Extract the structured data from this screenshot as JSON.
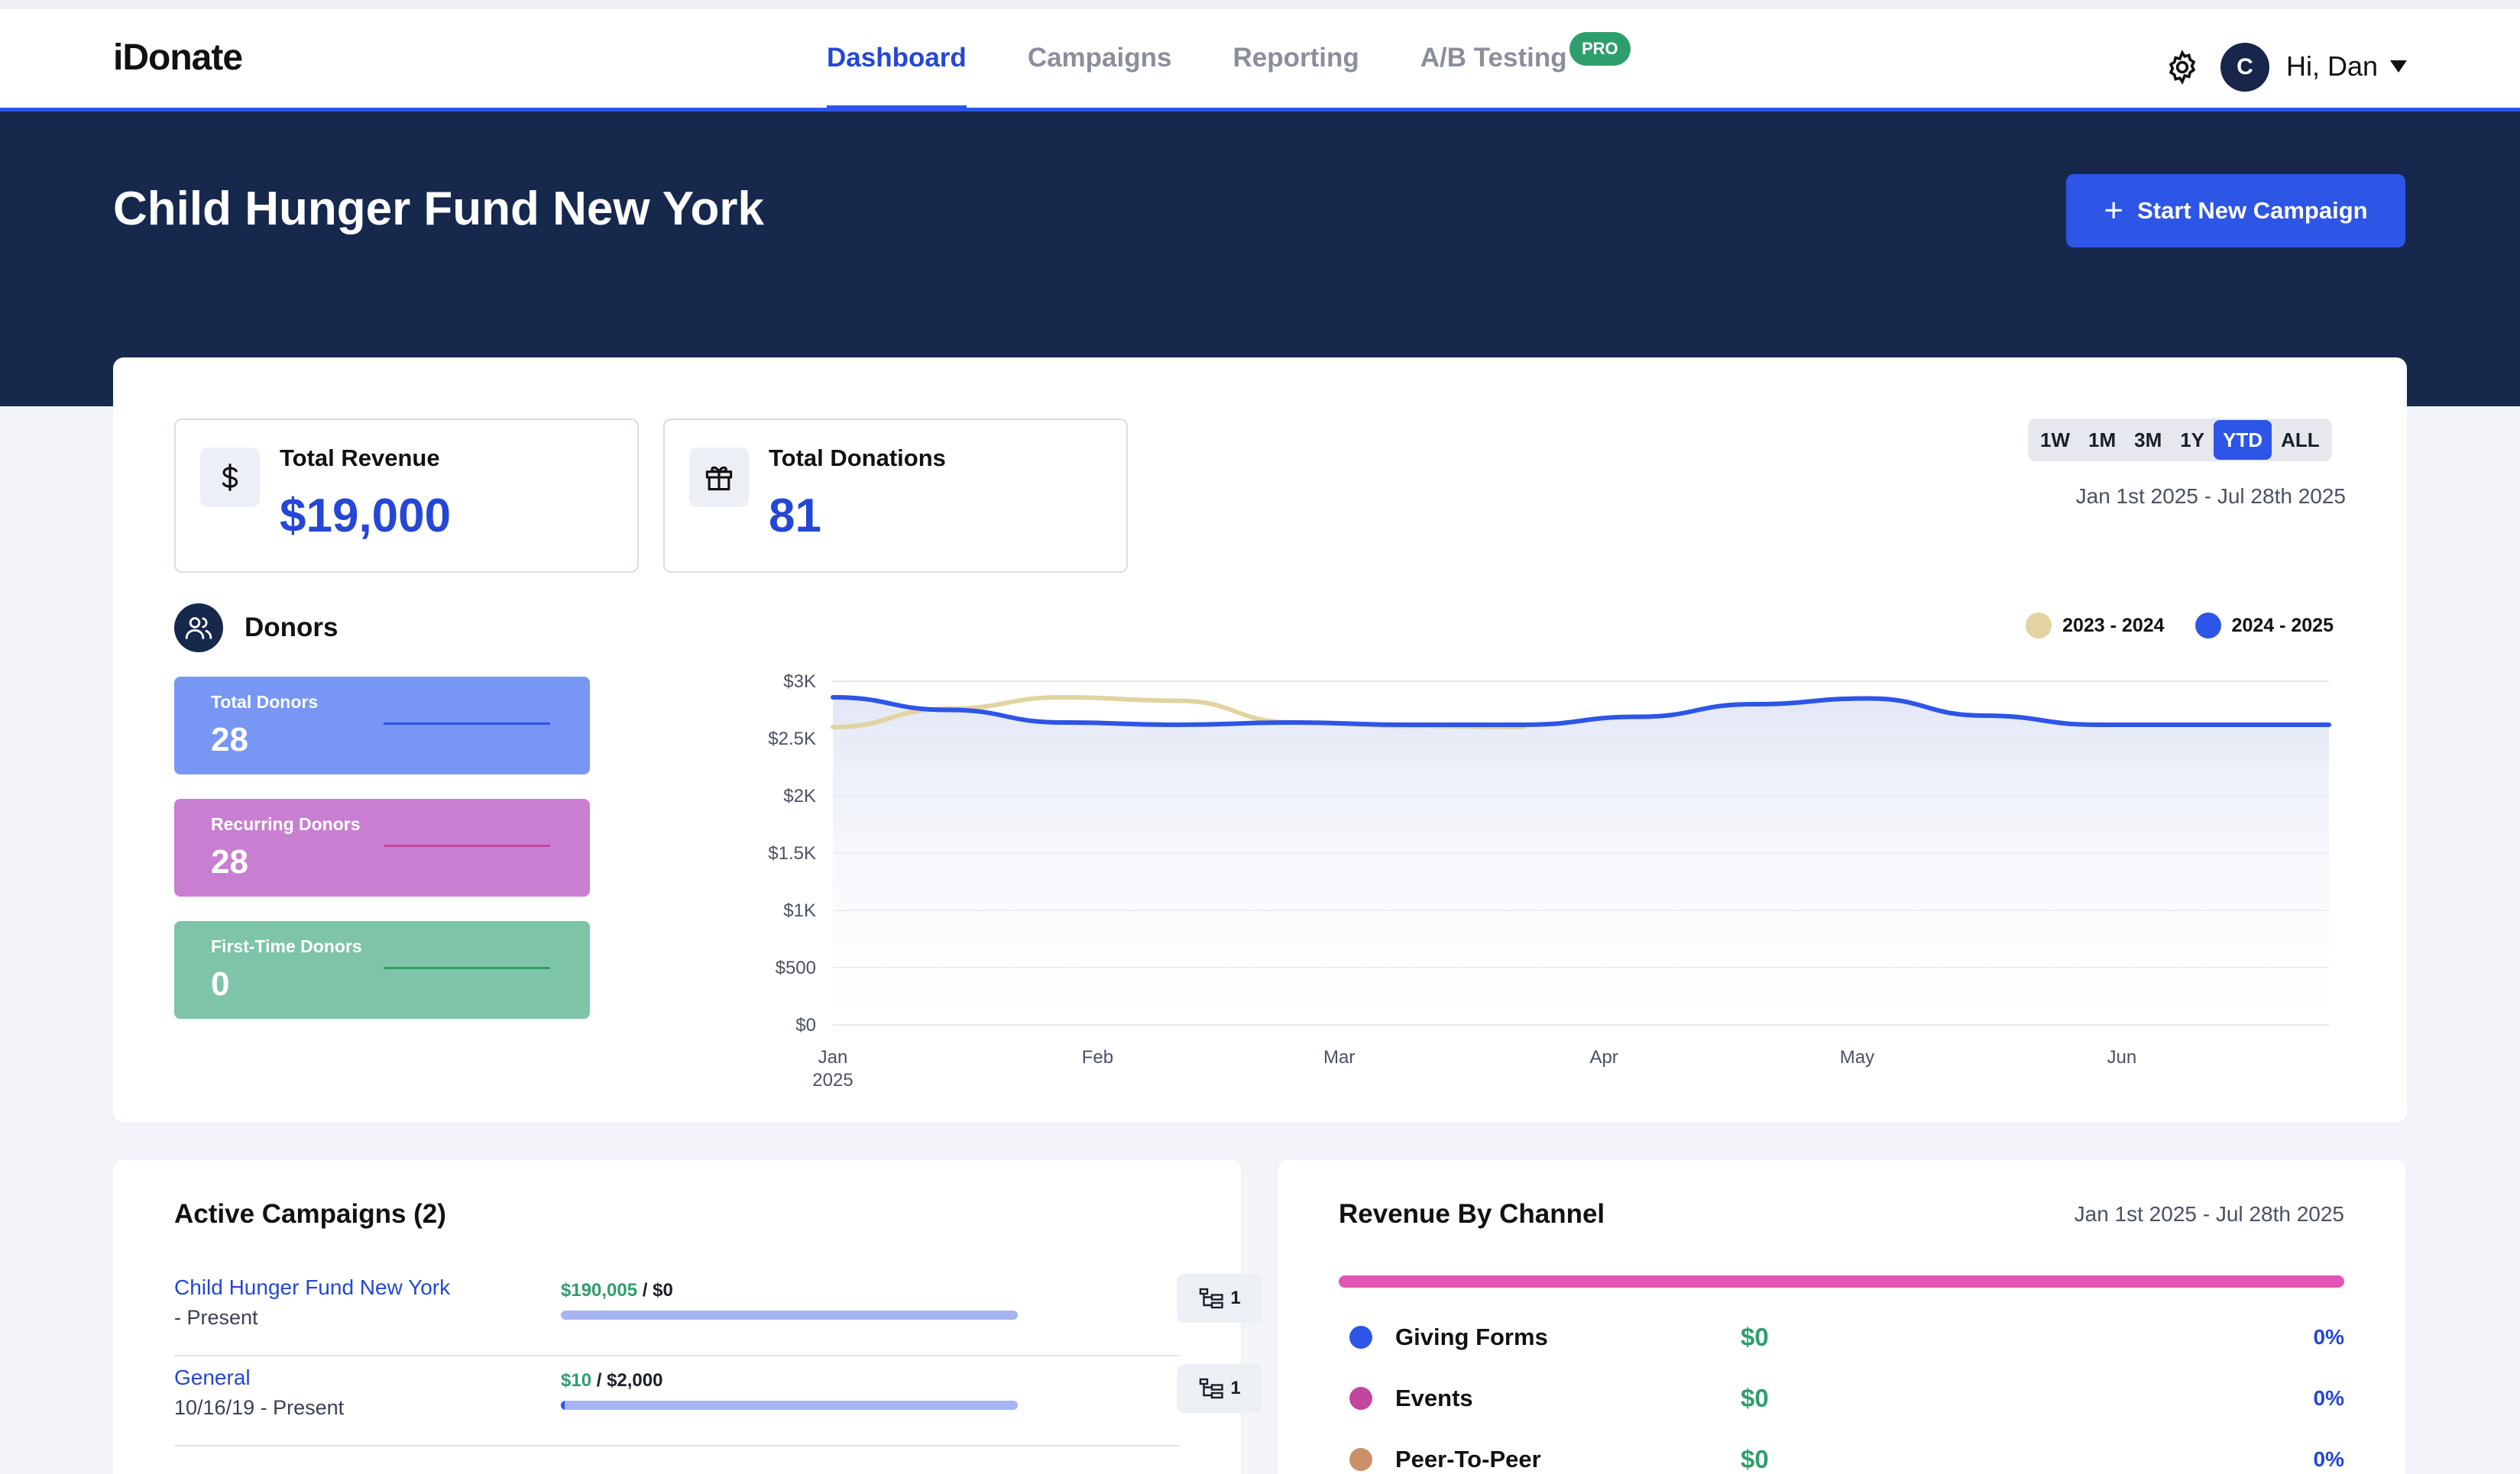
{
  "app": {
    "logo": "iDonate"
  },
  "nav": {
    "tabs": [
      {
        "label": "Dashboard",
        "active": true
      },
      {
        "label": "Campaigns",
        "active": false
      },
      {
        "label": "Reporting",
        "active": false
      },
      {
        "label": "A/B Testing",
        "active": false
      }
    ],
    "pro_badge": "PRO",
    "settings_icon": "gear-icon",
    "avatar_initial": "C",
    "greeting": "Hi, Dan"
  },
  "hero": {
    "title": "Child Hunger Fund New York",
    "start_button": "Start New Campaign"
  },
  "kpis": [
    {
      "label": "Total Revenue",
      "value": "$19,000",
      "icon": "dollar-icon"
    },
    {
      "label": "Total Donations",
      "value": "81",
      "icon": "gift-icon"
    }
  ],
  "range": {
    "options": [
      "1W",
      "1M",
      "3M",
      "1Y",
      "YTD",
      "ALL"
    ],
    "selected": "YTD",
    "date_range": "Jan 1st 2025 - Jul 28th 2025"
  },
  "donors": {
    "title": "Donors",
    "stats": [
      {
        "label": "Total Donors",
        "value": "28",
        "color": "#7896f4",
        "line": "#2d55e6"
      },
      {
        "label": "Recurring Donors",
        "value": "28",
        "color": "#c97fd1",
        "line": "#c2459f"
      },
      {
        "label": "First-Time Donors",
        "value": "0",
        "color": "#7dc4a8",
        "line": "#2f9e6d"
      }
    ]
  },
  "chart_data": {
    "type": "line",
    "title": "",
    "xlabel": "",
    "ylabel": "",
    "x_ticks": [
      "Jan\n2025",
      "Feb",
      "Mar",
      "Apr",
      "May",
      "Jun"
    ],
    "y_ticks": [
      "$0",
      "$500",
      "$1K",
      "$1.5K",
      "$2K",
      "$2.5K",
      "$3K"
    ],
    "ylim": [
      0,
      3000
    ],
    "x": [
      "Jan 1",
      "Jan 15",
      "Feb 1",
      "Feb 15",
      "Mar 1",
      "Mar 15",
      "Apr 1",
      "Apr 15",
      "May 1",
      "May 15",
      "Jun 1",
      "Jun 15",
      "Jul 1",
      "Jul 28"
    ],
    "series": [
      {
        "name": "2023 - 2024",
        "color": "#e2d3a0",
        "values": [
          2600,
          2760,
          2860,
          2830,
          2640,
          2610,
          2600,
          null,
          null,
          null,
          null,
          null,
          null,
          null
        ]
      },
      {
        "name": "2024 - 2025",
        "color": "#2d55e6",
        "values": [
          2860,
          2750,
          2640,
          2620,
          2640,
          2620,
          2620,
          2690,
          2800,
          2850,
          2700,
          2620,
          2620,
          2620
        ]
      }
    ],
    "grid": true,
    "legend": "top-right"
  },
  "campaigns": {
    "title": "Active Campaigns (2)",
    "items": [
      {
        "name": "Child Hunger Fund New York",
        "date": "- Present",
        "raised": "$190,005",
        "goal": "$0",
        "progress": 1.0,
        "count": "1"
      },
      {
        "name": "General",
        "date": "10/16/19 - Present",
        "raised": "$10",
        "goal": "$2,000",
        "progress": 0.005,
        "count": "1"
      }
    ]
  },
  "channels": {
    "title": "Revenue By Channel",
    "date_range": "Jan 1st 2025 - Jul 28th 2025",
    "items": [
      {
        "name": "Giving Forms",
        "amount": "$0",
        "percent": "0%",
        "color": "#2d55e6"
      },
      {
        "name": "Events",
        "amount": "$0",
        "percent": "0%",
        "color": "#c2459f"
      },
      {
        "name": "Peer-To-Peer",
        "amount": "$0",
        "percent": "0%",
        "color": "#c9906a"
      }
    ]
  }
}
